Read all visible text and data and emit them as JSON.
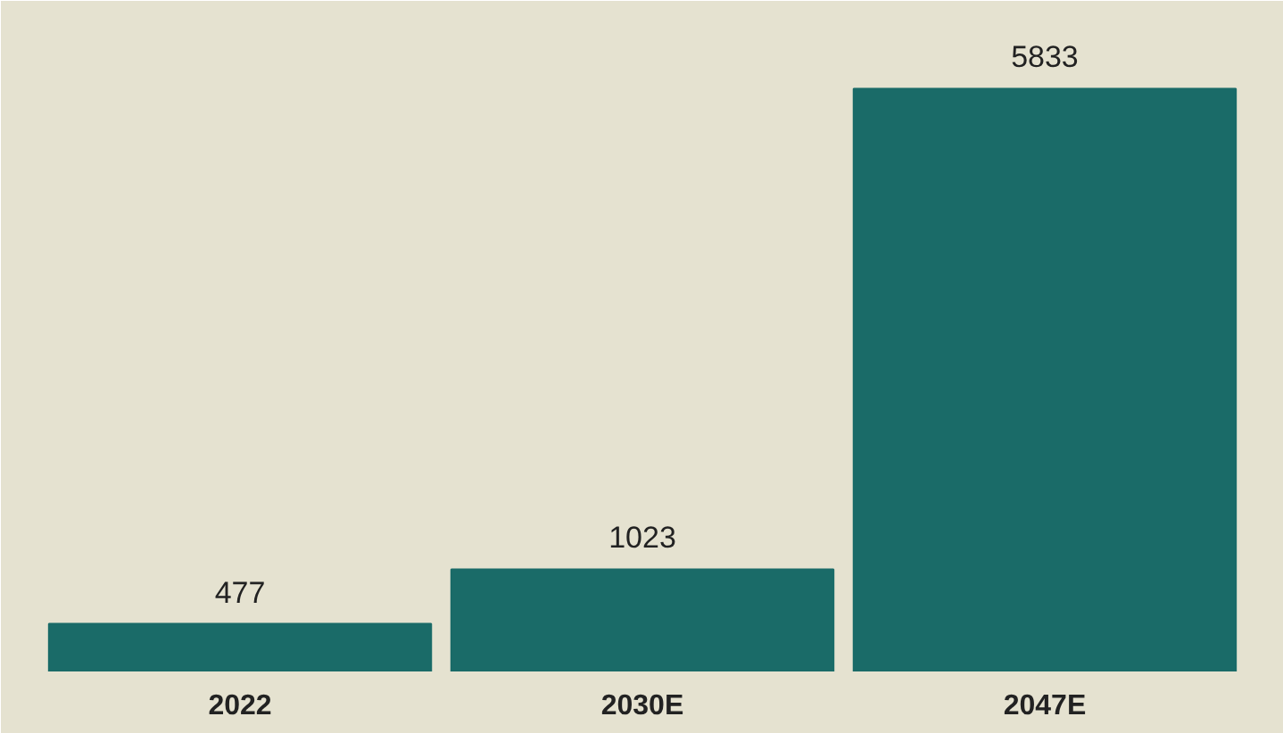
{
  "chart_data": {
    "type": "bar",
    "categories": [
      "2022",
      "2030E",
      "2047E"
    ],
    "values": [
      477,
      1023,
      5833
    ],
    "color": "#1a6b68",
    "data_labels": true
  }
}
